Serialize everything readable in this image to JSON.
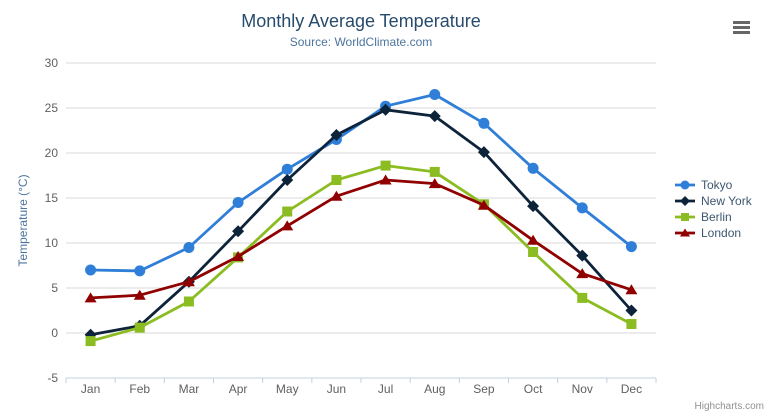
{
  "chart_data": {
    "type": "line",
    "title": "Monthly Average Temperature",
    "subtitle": "Source: WorldClimate.com",
    "xlabel": "",
    "ylabel": "Temperature (°C)",
    "ylim": [
      -5,
      30
    ],
    "y_ticks": [
      -5,
      0,
      5,
      10,
      15,
      20,
      25,
      30
    ],
    "grid": true,
    "legend_position": "right",
    "categories": [
      "Jan",
      "Feb",
      "Mar",
      "Apr",
      "May",
      "Jun",
      "Jul",
      "Aug",
      "Sep",
      "Oct",
      "Nov",
      "Dec"
    ],
    "series": [
      {
        "name": "Tokyo",
        "color": "#2f7ed8",
        "marker": "circle",
        "values": [
          7.0,
          6.9,
          9.5,
          14.5,
          18.2,
          21.5,
          25.2,
          26.5,
          23.3,
          18.3,
          13.9,
          9.6
        ]
      },
      {
        "name": "New York",
        "color": "#0d233a",
        "marker": "diamond",
        "values": [
          -0.2,
          0.8,
          5.7,
          11.3,
          17.0,
          22.0,
          24.8,
          24.1,
          20.1,
          14.1,
          8.6,
          2.5
        ]
      },
      {
        "name": "Berlin",
        "color": "#8bbc21",
        "marker": "square",
        "values": [
          -0.9,
          0.6,
          3.5,
          8.4,
          13.5,
          17.0,
          18.6,
          17.9,
          14.3,
          9.0,
          3.9,
          1.0
        ]
      },
      {
        "name": "London",
        "color": "#910000",
        "marker": "triangle",
        "values": [
          3.9,
          4.2,
          5.7,
          8.5,
          11.9,
          15.2,
          17.0,
          16.6,
          14.2,
          10.3,
          6.6,
          4.8
        ]
      }
    ]
  },
  "credits": {
    "label": "Highcharts.com"
  },
  "icons": {
    "context_menu": "hamburger-icon"
  },
  "style_colors": {
    "title": "#274b6d",
    "subtitle": "#4d759e",
    "axis_title": "#4d759e",
    "axis_labels": "#606060",
    "grid_line": "#d8d8d8",
    "axis_line": "#c0d0e0",
    "legend_text": "#3e576f",
    "credits_text": "#909090",
    "menu_icon": "#666666",
    "background": "#ffffff"
  }
}
